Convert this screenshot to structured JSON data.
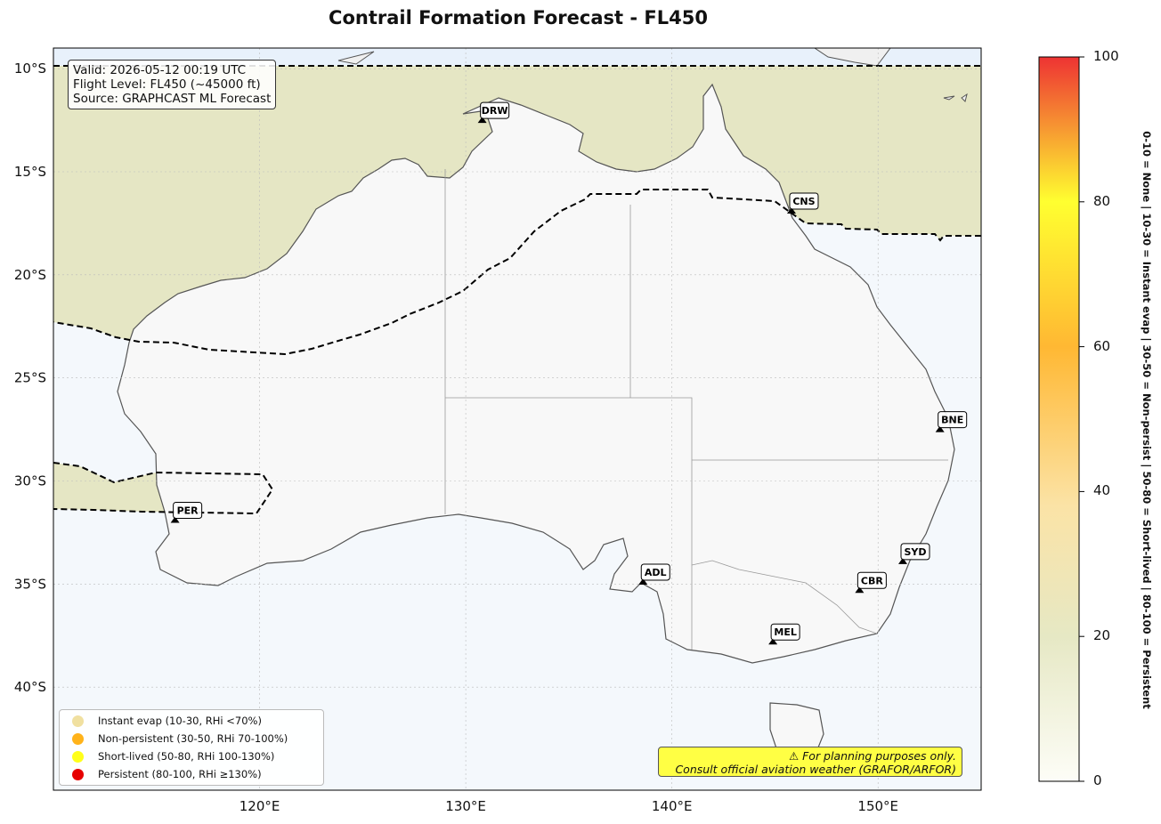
{
  "title": "Contrail Formation Forecast - FL450",
  "info": {
    "valid": "Valid: 2026-05-12 00:19 UTC",
    "flight_level": "Flight Level: FL450 (~45000 ft)",
    "source": "Source: GRAPHCAST ML Forecast"
  },
  "axes": {
    "lat_labels": [
      "10°S",
      "15°S",
      "20°S",
      "25°S",
      "30°S",
      "35°S",
      "40°S"
    ],
    "lon_labels": [
      "120°E",
      "130°E",
      "140°E",
      "150°E"
    ],
    "lat_range": [
      -45,
      -9
    ],
    "lon_range": [
      110,
      155
    ]
  },
  "cities": [
    {
      "code": "DRW",
      "lon": 130.8,
      "lat": -12.5
    },
    {
      "code": "CNS",
      "lon": 145.8,
      "lat": -16.9
    },
    {
      "code": "BNE",
      "lon": 153.0,
      "lat": -27.5
    },
    {
      "code": "PER",
      "lon": 115.9,
      "lat": -31.9
    },
    {
      "code": "ADL",
      "lon": 138.6,
      "lat": -34.9
    },
    {
      "code": "SYD",
      "lon": 151.2,
      "lat": -33.9
    },
    {
      "code": "CBR",
      "lon": 149.1,
      "lat": -35.3
    },
    {
      "code": "MEL",
      "lon": 144.9,
      "lat": -37.8
    }
  ],
  "legend": [
    {
      "label": "Instant evap (10-30, RHi <70%)",
      "color": "#f0e0a0"
    },
    {
      "label": "Non-persistent (30-50, RHi 70-100%)",
      "color": "#ffb31a"
    },
    {
      "label": "Short-lived (50-80, RHi 100-130%)",
      "color": "#ffff1a"
    },
    {
      "label": "Persistent (80-100, RHi ≥130%)",
      "color": "#e60000"
    }
  ],
  "warning": {
    "line1": "⚠ For planning purposes only.",
    "line2": "Consult official aviation weather (GRAFOR/ARFOR)"
  },
  "colorbar": {
    "ticks": [
      "0",
      "20",
      "40",
      "60",
      "80",
      "100"
    ],
    "range": [
      0,
      100
    ],
    "note": "0-10 = None  |  10-30 = Instant evap  |  30-50 = Non-persist  |  50-80 = Short-lived  |  80-100 = Persistent"
  }
}
